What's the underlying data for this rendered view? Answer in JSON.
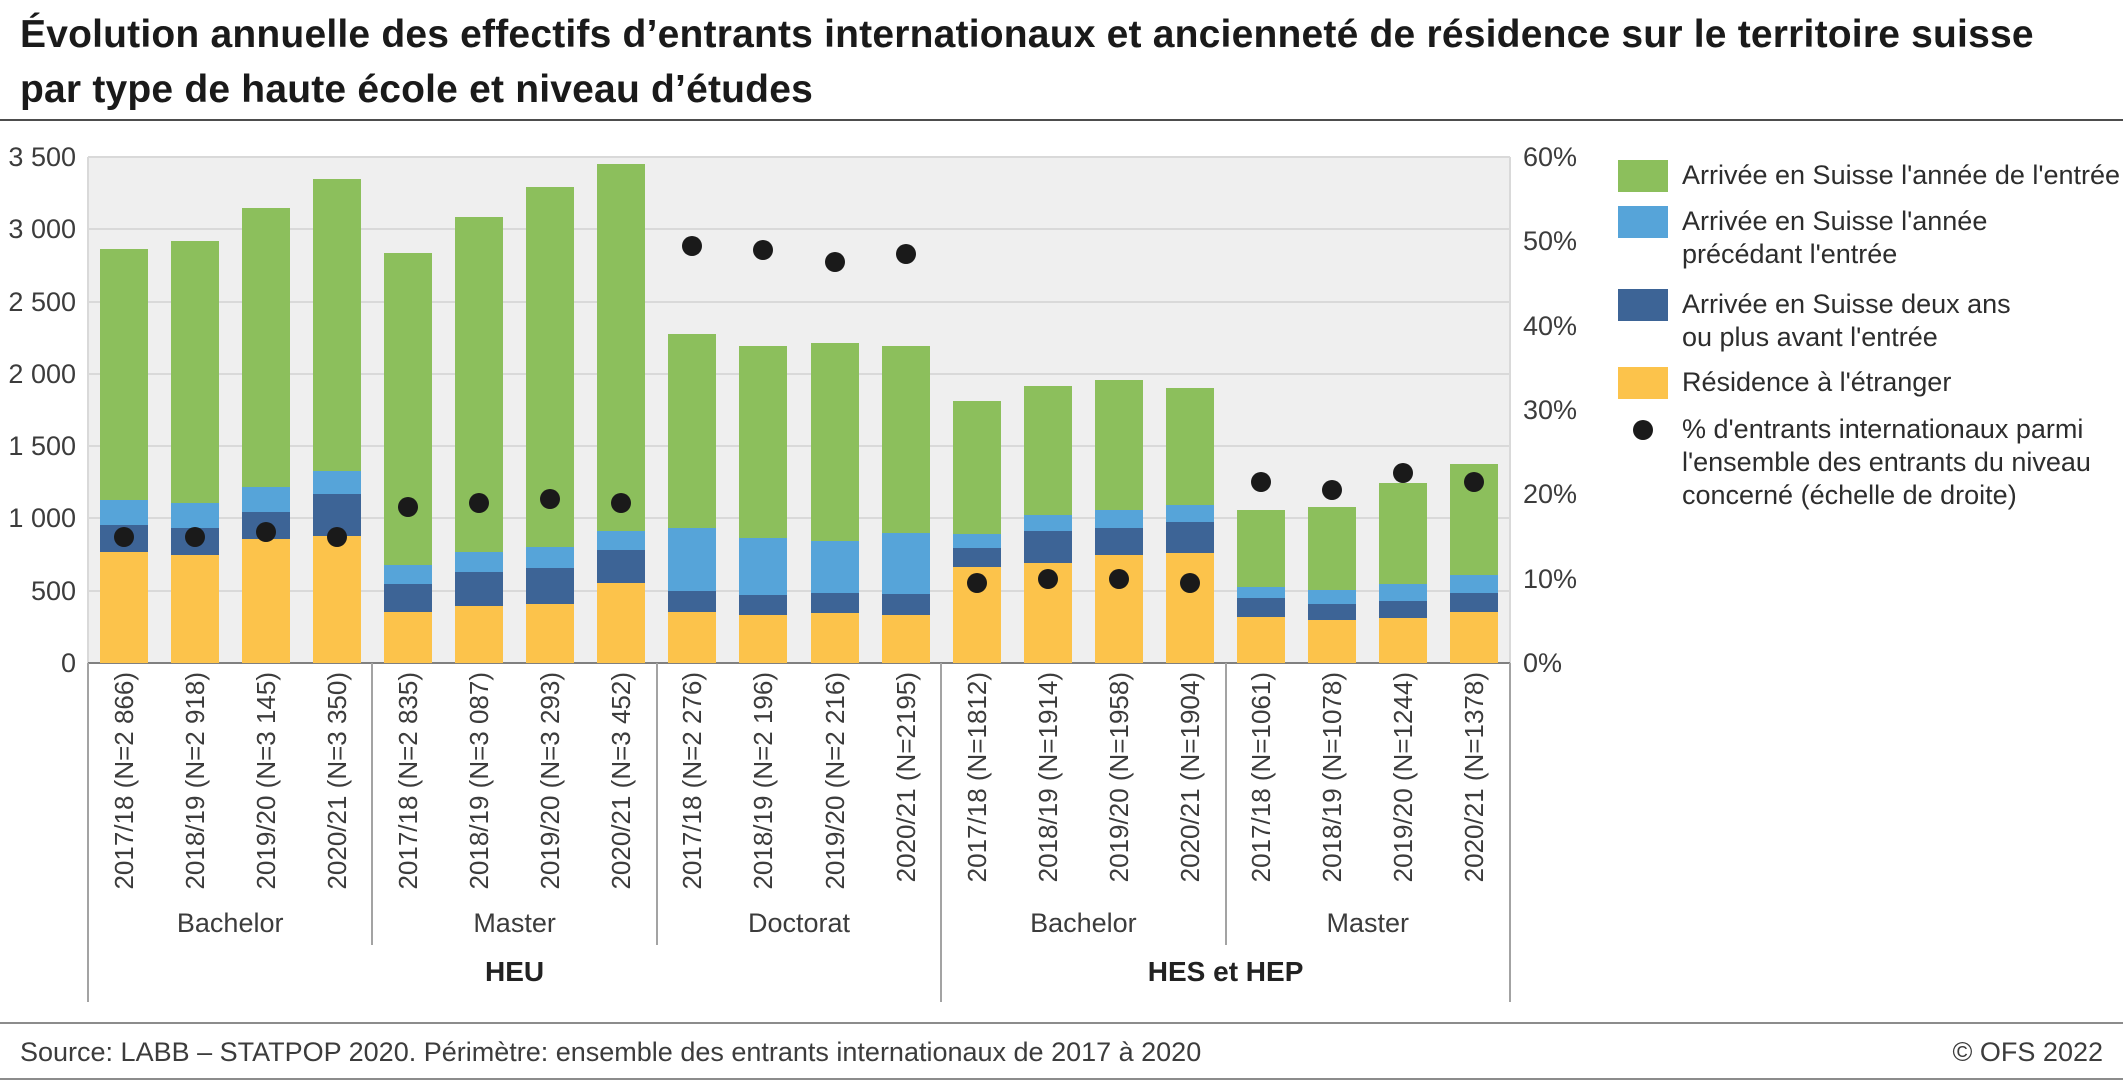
{
  "title": "Évolution annuelle des effectifs d’entrants internationaux et ancienneté de résidence sur le territoire suisse\npar type de haute école et niveau d’études",
  "footer": {
    "source": "Source: LABB – STATPOP 2020. Périmètre: ensemble des entrants internationaux de 2017 à 2020",
    "copyright": "© OFS 2022"
  },
  "colors": {
    "green": "#8CBF5C",
    "light_blue": "#56A4D9",
    "dark_blue": "#3D6496",
    "yellow": "#FCC34B",
    "dot": "#1A1A1A",
    "plot_bg": "#EFEFEF",
    "gridline": "#D9D9D9",
    "axis_line": "#808080",
    "separator": "#A3A3A3"
  },
  "legend": [
    {
      "marker": "green",
      "label": "Arrivée en Suisse l'année de l'entrée"
    },
    {
      "marker": "light_blue",
      "label": "Arrivée en Suisse l'année\nprécédant l'entrée"
    },
    {
      "marker": "dark_blue",
      "label": "Arrivée en Suisse deux ans\nou plus avant l'entrée"
    },
    {
      "marker": "yellow",
      "label": "Résidence à l'étranger"
    },
    {
      "marker": "dot",
      "label": "% d'entrants internationaux parmi\nl'ensemble des entrants du niveau\nconcerné (échelle de droite)"
    }
  ],
  "chart_data": {
    "type": "bar",
    "variant": "stacked bars with percentage dots on secondary axis",
    "title": "Évolution annuelle des effectifs d’entrants internationaux et ancienneté de résidence sur le territoire suisse par type de haute école et niveau d’études",
    "grid": true,
    "legend_position": "right",
    "left_axis": {
      "min": 0,
      "max": 3500,
      "step": 500,
      "ticks": [
        "0",
        "500",
        "1 000",
        "1 500",
        "2 000",
        "2 500",
        "3 000",
        "3 500"
      ]
    },
    "right_axis": {
      "min": 0,
      "max": 60,
      "step": 10,
      "ticks": [
        "0%",
        "10%",
        "20%",
        "30%",
        "40%",
        "50%",
        "60%"
      ]
    },
    "stack_order": [
      "residence_etranger",
      "arrivee_deux_ans_ou_plus",
      "arrivee_annee_precedente",
      "arrivee_annee_entree"
    ],
    "stack_colors": {
      "residence_etranger": "yellow",
      "arrivee_deux_ans_ou_plus": "dark_blue",
      "arrivee_annee_precedente": "light_blue",
      "arrivee_annee_entree": "green"
    },
    "super_groups": [
      {
        "label": "HEU",
        "span": 3
      },
      {
        "label": "HES et HEP",
        "span": 2
      }
    ],
    "groups": [
      {
        "school_type": "HEU",
        "level": "Bachelor",
        "bars": [
          {
            "label": "2017/18 (N=2 866)",
            "total": 2866,
            "residence_etranger": 770,
            "arrivee_deux_ans_ou_plus": 185,
            "arrivee_annee_precedente": 170,
            "arrivee_annee_entree": 1741,
            "pct_dot": 15
          },
          {
            "label": "2018/19 (N=2 918)",
            "total": 2918,
            "residence_etranger": 750,
            "arrivee_deux_ans_ou_plus": 185,
            "arrivee_annee_precedente": 170,
            "arrivee_annee_entree": 1813,
            "pct_dot": 15
          },
          {
            "label": "2019/20 (N=3 145)",
            "total": 3145,
            "residence_etranger": 860,
            "arrivee_deux_ans_ou_plus": 185,
            "arrivee_annee_precedente": 170,
            "arrivee_annee_entree": 1930,
            "pct_dot": 15.5
          },
          {
            "label": "2020/21 (N=3 350)",
            "total": 3350,
            "residence_etranger": 880,
            "arrivee_deux_ans_ou_plus": 290,
            "arrivee_annee_precedente": 160,
            "arrivee_annee_entree": 2020,
            "pct_dot": 15
          }
        ]
      },
      {
        "school_type": "HEU",
        "level": "Master",
        "bars": [
          {
            "label": "2017/18 (N=2 835)",
            "total": 2835,
            "residence_etranger": 355,
            "arrivee_deux_ans_ou_plus": 190,
            "arrivee_annee_precedente": 130,
            "arrivee_annee_entree": 2160,
            "pct_dot": 18.5
          },
          {
            "label": "2018/19 (N=3 087)",
            "total": 3087,
            "residence_etranger": 395,
            "arrivee_deux_ans_ou_plus": 235,
            "arrivee_annee_precedente": 140,
            "arrivee_annee_entree": 2317,
            "pct_dot": 19
          },
          {
            "label": "2019/20 (N=3 293)",
            "total": 3293,
            "residence_etranger": 410,
            "arrivee_deux_ans_ou_plus": 245,
            "arrivee_annee_precedente": 150,
            "arrivee_annee_entree": 2488,
            "pct_dot": 19.5
          },
          {
            "label": "2020/21 (N=3 452)",
            "total": 3452,
            "residence_etranger": 550,
            "arrivee_deux_ans_ou_plus": 235,
            "arrivee_annee_precedente": 125,
            "arrivee_annee_entree": 2542,
            "pct_dot": 19
          }
        ]
      },
      {
        "school_type": "HEU",
        "level": "Doctorat",
        "bars": [
          {
            "label": "2017/18 (N=2 276)",
            "total": 2276,
            "residence_etranger": 350,
            "arrivee_deux_ans_ou_plus": 150,
            "arrivee_annee_precedente": 435,
            "arrivee_annee_entree": 1341,
            "pct_dot": 49.5
          },
          {
            "label": "2018/19 (N=2 196)",
            "total": 2196,
            "residence_etranger": 330,
            "arrivee_deux_ans_ou_plus": 140,
            "arrivee_annee_precedente": 395,
            "arrivee_annee_entree": 1331,
            "pct_dot": 49
          },
          {
            "label": "2019/20 (N=2 216)",
            "total": 2216,
            "residence_etranger": 345,
            "arrivee_deux_ans_ou_plus": 140,
            "arrivee_annee_precedente": 360,
            "arrivee_annee_entree": 1371,
            "pct_dot": 47.5
          },
          {
            "label": "2020/21 (N=2195)",
            "total": 2195,
            "residence_etranger": 330,
            "arrivee_deux_ans_ou_plus": 150,
            "arrivee_annee_precedente": 420,
            "arrivee_annee_entree": 1295,
            "pct_dot": 48.5
          }
        ]
      },
      {
        "school_type": "HES et HEP",
        "level": "Bachelor",
        "bars": [
          {
            "label": "2017/18 (N=1812)",
            "total": 1812,
            "residence_etranger": 665,
            "arrivee_deux_ans_ou_plus": 130,
            "arrivee_annee_precedente": 95,
            "arrivee_annee_entree": 922,
            "pct_dot": 9.5
          },
          {
            "label": "2018/19 (N=1914)",
            "total": 1914,
            "residence_etranger": 690,
            "arrivee_deux_ans_ou_plus": 225,
            "arrivee_annee_precedente": 110,
            "arrivee_annee_entree": 889,
            "pct_dot": 10
          },
          {
            "label": "2019/20 (N=1958)",
            "total": 1958,
            "residence_etranger": 750,
            "arrivee_deux_ans_ou_plus": 185,
            "arrivee_annee_precedente": 120,
            "arrivee_annee_entree": 903,
            "pct_dot": 10
          },
          {
            "label": "2020/21 (N=1904)",
            "total": 1904,
            "residence_etranger": 760,
            "arrivee_deux_ans_ou_plus": 215,
            "arrivee_annee_precedente": 120,
            "arrivee_annee_entree": 809,
            "pct_dot": 9.5
          }
        ]
      },
      {
        "school_type": "HES et HEP",
        "level": "Master",
        "bars": [
          {
            "label": "2017/18 (N=1061)",
            "total": 1061,
            "residence_etranger": 320,
            "arrivee_deux_ans_ou_plus": 130,
            "arrivee_annee_precedente": 75,
            "arrivee_annee_entree": 536,
            "pct_dot": 21.5
          },
          {
            "label": "2018/19 (N=1078)",
            "total": 1078,
            "residence_etranger": 300,
            "arrivee_deux_ans_ou_plus": 110,
            "arrivee_annee_precedente": 95,
            "arrivee_annee_entree": 573,
            "pct_dot": 20.5
          },
          {
            "label": "2019/20 (N=1244)",
            "total": 1244,
            "residence_etranger": 310,
            "arrivee_deux_ans_ou_plus": 120,
            "arrivee_annee_precedente": 115,
            "arrivee_annee_entree": 699,
            "pct_dot": 22.5
          },
          {
            "label": "2020/21 (N=1378)",
            "total": 1378,
            "residence_etranger": 355,
            "arrivee_deux_ans_ou_plus": 130,
            "arrivee_annee_precedente": 125,
            "arrivee_annee_entree": 768,
            "pct_dot": 21.5
          }
        ]
      }
    ]
  }
}
